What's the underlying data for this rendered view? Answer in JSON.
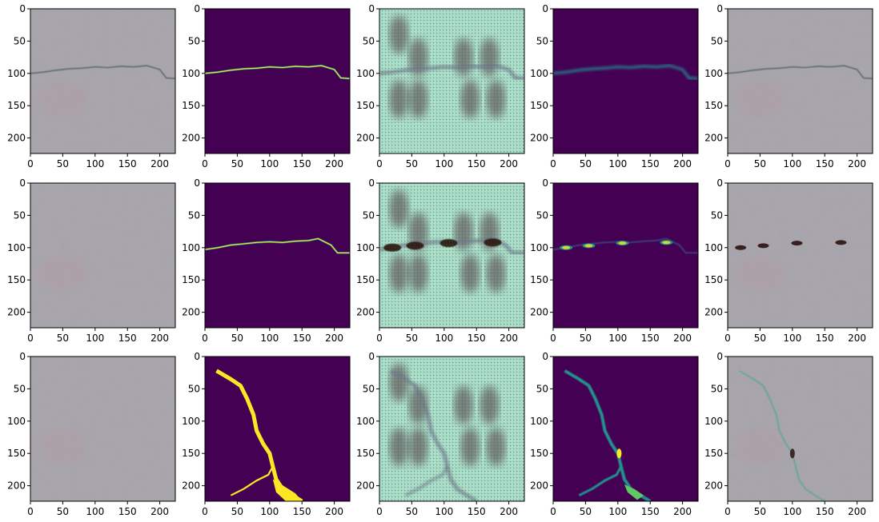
{
  "axes": {
    "x_ticks": [
      0,
      50,
      100,
      150,
      200
    ],
    "y_ticks": [
      0,
      50,
      100,
      150,
      200
    ],
    "xlim": [
      0,
      224
    ],
    "ylim": [
      224,
      0
    ]
  },
  "colors": {
    "photo_bg": "#a7a3aa",
    "crack_dark": "#5d6b72",
    "mask_bg": "#440154",
    "mask_fg": "#fde725",
    "mask_mid": "#21918c",
    "heat_bg": "#a9dfc9",
    "heat_blob": "#5a4f52",
    "heat_dark": "#2b1210"
  },
  "rows": [
    {
      "row_index": 0,
      "crack_path": [
        [
          0,
          100
        ],
        [
          20,
          98
        ],
        [
          40,
          95
        ],
        [
          60,
          93
        ],
        [
          80,
          92
        ],
        [
          100,
          90
        ],
        [
          120,
          91
        ],
        [
          140,
          89
        ],
        [
          160,
          90
        ],
        [
          180,
          88
        ],
        [
          200,
          94
        ],
        [
          210,
          107
        ],
        [
          224,
          108
        ]
      ],
      "blobs": [
        [
          30,
          40
        ],
        [
          60,
          75
        ],
        [
          130,
          75
        ],
        [
          170,
          75
        ],
        [
          30,
          140
        ],
        [
          60,
          140
        ],
        [
          140,
          140
        ],
        [
          180,
          140
        ]
      ]
    },
    {
      "row_index": 1,
      "crack_path": [
        [
          0,
          103
        ],
        [
          20,
          100
        ],
        [
          40,
          96
        ],
        [
          60,
          94
        ],
        [
          80,
          92
        ],
        [
          100,
          91
        ],
        [
          120,
          92
        ],
        [
          140,
          90
        ],
        [
          160,
          89
        ],
        [
          175,
          86
        ],
        [
          195,
          96
        ],
        [
          205,
          108
        ],
        [
          224,
          108
        ]
      ],
      "dark_spots": [
        [
          20,
          100
        ],
        [
          55,
          97
        ],
        [
          107,
          93
        ],
        [
          175,
          92
        ]
      ],
      "blobs": [
        [
          30,
          40
        ],
        [
          60,
          75
        ],
        [
          130,
          75
        ],
        [
          170,
          75
        ],
        [
          30,
          140
        ],
        [
          60,
          140
        ],
        [
          140,
          140
        ],
        [
          180,
          140
        ]
      ]
    },
    {
      "row_index": 2,
      "crack_path": [
        [
          18,
          22
        ],
        [
          40,
          35
        ],
        [
          55,
          45
        ],
        [
          65,
          65
        ],
        [
          75,
          90
        ],
        [
          80,
          115
        ],
        [
          90,
          135
        ],
        [
          100,
          150
        ],
        [
          105,
          170
        ],
        [
          110,
          190
        ],
        [
          120,
          205
        ],
        [
          135,
          215
        ],
        [
          150,
          224
        ]
      ],
      "branch_path": [
        [
          40,
          215
        ],
        [
          60,
          205
        ],
        [
          80,
          192
        ],
        [
          98,
          183
        ],
        [
          105,
          170
        ]
      ],
      "blobs": [
        [
          30,
          40
        ],
        [
          60,
          75
        ],
        [
          130,
          75
        ],
        [
          170,
          75
        ],
        [
          30,
          140
        ],
        [
          60,
          140
        ],
        [
          140,
          140
        ],
        [
          180,
          140
        ]
      ]
    }
  ]
}
